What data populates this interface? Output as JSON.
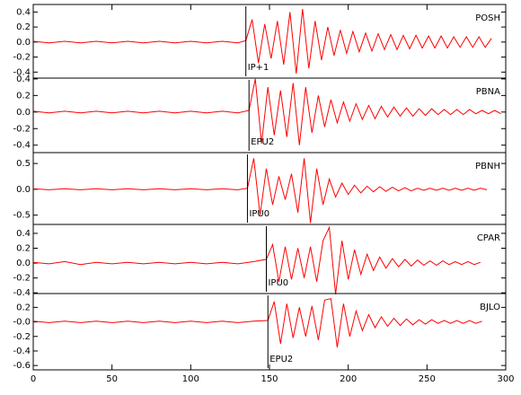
{
  "chart_data": [
    {
      "type": "line",
      "name": "POSH",
      "color": "#ff0000",
      "xlim": [
        0,
        300
      ],
      "ylim": [
        -0.48,
        0.5
      ],
      "yticks": [
        0.4,
        0.2,
        {
          "value": 0,
          "label": "0.0"
        },
        -0.2,
        -0.4
      ],
      "pick": {
        "label": "IP+1",
        "x": 135
      },
      "x": [
        0,
        10,
        20,
        30,
        40,
        50,
        60,
        70,
        80,
        90,
        100,
        110,
        120,
        130,
        135,
        139,
        143,
        147,
        151,
        155,
        159,
        163,
        167,
        171,
        175,
        179,
        183,
        187,
        191,
        195,
        199,
        203,
        207,
        211,
        215,
        219,
        223,
        227,
        231,
        235,
        239,
        243,
        247,
        251,
        255,
        259,
        263,
        267,
        271,
        275,
        279,
        283,
        287,
        291
      ],
      "values": [
        0.01,
        -0.01,
        0.01,
        -0.01,
        0.01,
        -0.01,
        0.01,
        -0.01,
        0.01,
        -0.01,
        0.01,
        -0.01,
        0.01,
        -0.01,
        0.02,
        0.3,
        -0.28,
        0.24,
        -0.22,
        0.28,
        -0.3,
        0.4,
        -0.42,
        0.44,
        -0.35,
        0.28,
        -0.24,
        0.2,
        -0.18,
        0.16,
        -0.15,
        0.14,
        -0.13,
        0.12,
        -0.12,
        0.11,
        -0.1,
        0.1,
        -0.1,
        0.09,
        -0.09,
        0.09,
        -0.08,
        0.08,
        -0.08,
        0.08,
        -0.08,
        0.07,
        -0.07,
        0.07,
        -0.07,
        0.07,
        -0.07,
        0.05
      ]
    },
    {
      "type": "line",
      "name": "PBNA",
      "color": "#ff0000",
      "xlim": [
        0,
        300
      ],
      "ylim": [
        -0.49,
        0.41
      ],
      "yticks": [
        0.4,
        0.2,
        {
          "value": 0,
          "label": "0.0"
        },
        -0.2,
        -0.4
      ],
      "pick": {
        "label": "EPU2",
        "x": 137
      },
      "x": [
        0,
        10,
        20,
        30,
        40,
        50,
        60,
        70,
        80,
        90,
        100,
        110,
        120,
        130,
        137,
        141,
        145,
        149,
        153,
        157,
        161,
        165,
        169,
        173,
        177,
        181,
        185,
        189,
        193,
        197,
        201,
        205,
        209,
        213,
        217,
        221,
        225,
        229,
        233,
        237,
        241,
        245,
        249,
        253,
        257,
        261,
        265,
        269,
        273,
        277,
        281,
        285,
        289,
        293,
        297
      ],
      "values": [
        0.01,
        -0.01,
        0.01,
        -0.01,
        0.01,
        -0.01,
        0.01,
        -0.01,
        0.01,
        -0.01,
        0.01,
        -0.01,
        0.01,
        -0.01,
        0.02,
        0.4,
        -0.38,
        0.3,
        -0.28,
        0.26,
        -0.3,
        0.35,
        -0.4,
        0.3,
        -0.25,
        0.2,
        -0.18,
        0.15,
        -0.13,
        0.12,
        -0.11,
        0.1,
        -0.09,
        0.08,
        -0.08,
        0.07,
        -0.06,
        0.06,
        -0.05,
        0.05,
        -0.05,
        0.04,
        -0.04,
        0.04,
        -0.03,
        0.03,
        -0.03,
        0.03,
        -0.03,
        0.03,
        -0.02,
        0.02,
        -0.02,
        0.02,
        -0.02
      ]
    },
    {
      "type": "line",
      "name": "PBNH",
      "color": "#ff0000",
      "xlim": [
        0,
        300
      ],
      "ylim": [
        -0.68,
        0.71
      ],
      "yticks": [
        0.5,
        {
          "value": 0,
          "label": "0.0"
        },
        -0.5
      ],
      "pick": {
        "label": "IPU0",
        "x": 136
      },
      "x": [
        0,
        10,
        20,
        30,
        40,
        50,
        60,
        70,
        80,
        90,
        100,
        110,
        120,
        130,
        136,
        140,
        144,
        148,
        152,
        156,
        160,
        164,
        168,
        172,
        176,
        180,
        184,
        188,
        192,
        196,
        200,
        204,
        208,
        212,
        216,
        220,
        224,
        228,
        232,
        236,
        240,
        244,
        248,
        252,
        256,
        260,
        264,
        268,
        272,
        276,
        280,
        284,
        288
      ],
      "values": [
        0.01,
        -0.01,
        0.01,
        -0.01,
        0.01,
        -0.01,
        0.01,
        -0.01,
        0.01,
        -0.01,
        0.01,
        -0.01,
        0.01,
        -0.01,
        0.02,
        0.6,
        -0.5,
        0.4,
        -0.3,
        0.25,
        -0.2,
        0.3,
        -0.45,
        0.6,
        -0.65,
        0.4,
        -0.3,
        0.2,
        -0.15,
        0.12,
        -0.1,
        0.08,
        -0.07,
        0.06,
        -0.05,
        0.05,
        -0.04,
        0.04,
        -0.03,
        0.03,
        -0.03,
        0.02,
        -0.02,
        0.02,
        -0.02,
        0.02,
        -0.02,
        0.02,
        -0.02,
        0.02,
        -0.02,
        0.02,
        -0.01
      ]
    },
    {
      "type": "line",
      "name": "CPAR",
      "color": "#ff0000",
      "xlim": [
        0,
        300
      ],
      "ylim": [
        -0.41,
        0.52
      ],
      "yticks": [
        0.4,
        0.2,
        {
          "value": 0,
          "label": "0.0"
        },
        -0.2,
        -0.4
      ],
      "pick": {
        "label": "IPU0",
        "x": 148
      },
      "x": [
        0,
        10,
        20,
        30,
        40,
        50,
        60,
        70,
        80,
        90,
        100,
        110,
        120,
        130,
        140,
        148,
        152,
        156,
        160,
        164,
        168,
        172,
        176,
        180,
        184,
        188,
        192,
        196,
        200,
        204,
        208,
        212,
        216,
        220,
        224,
        228,
        232,
        236,
        240,
        244,
        248,
        252,
        256,
        260,
        264,
        268,
        272,
        276,
        280,
        284
      ],
      "values": [
        0.01,
        -0.01,
        0.02,
        -0.02,
        0.01,
        -0.01,
        0.01,
        -0.01,
        0.01,
        -0.01,
        0.01,
        -0.01,
        0.01,
        -0.01,
        0.02,
        0.05,
        0.25,
        -0.25,
        0.22,
        -0.22,
        0.2,
        -0.2,
        0.22,
        -0.25,
        0.3,
        0.48,
        -0.42,
        0.3,
        -0.22,
        0.18,
        -0.15,
        0.12,
        -0.1,
        0.08,
        -0.07,
        0.06,
        -0.05,
        0.05,
        -0.04,
        0.04,
        -0.03,
        0.03,
        -0.03,
        0.03,
        -0.02,
        0.02,
        -0.02,
        0.02,
        -0.02,
        0.01
      ]
    },
    {
      "type": "line",
      "name": "BJLO",
      "color": "#ff0000",
      "xlim": [
        0,
        300
      ],
      "ylim": [
        -0.66,
        0.39
      ],
      "yticks": [
        0.2,
        {
          "value": 0,
          "label": "-0.0"
        },
        -0.2,
        -0.4,
        -0.6
      ],
      "pick": {
        "label": "EPU2",
        "x": 149
      },
      "xticks": [
        0,
        50,
        100,
        150,
        200,
        250,
        300
      ],
      "x": [
        0,
        10,
        20,
        30,
        40,
        50,
        60,
        70,
        80,
        90,
        100,
        110,
        120,
        130,
        140,
        149,
        153,
        157,
        161,
        165,
        169,
        173,
        177,
        181,
        185,
        189,
        193,
        197,
        201,
        205,
        209,
        213,
        217,
        221,
        225,
        229,
        233,
        237,
        241,
        245,
        249,
        253,
        257,
        261,
        265,
        269,
        273,
        277,
        281,
        285
      ],
      "values": [
        0.01,
        -0.01,
        0.01,
        -0.01,
        0.01,
        -0.01,
        0.01,
        -0.01,
        0.01,
        -0.01,
        0.01,
        -0.01,
        0.01,
        -0.01,
        0.01,
        0.02,
        0.28,
        -0.3,
        0.25,
        -0.22,
        0.2,
        -0.2,
        0.22,
        -0.25,
        0.3,
        0.32,
        -0.35,
        0.25,
        -0.2,
        0.15,
        -0.12,
        0.1,
        -0.08,
        0.07,
        -0.06,
        0.05,
        -0.05,
        0.04,
        -0.04,
        0.03,
        -0.03,
        0.03,
        -0.02,
        0.02,
        -0.02,
        0.02,
        -0.02,
        0.02,
        -0.02,
        0.01
      ]
    }
  ]
}
